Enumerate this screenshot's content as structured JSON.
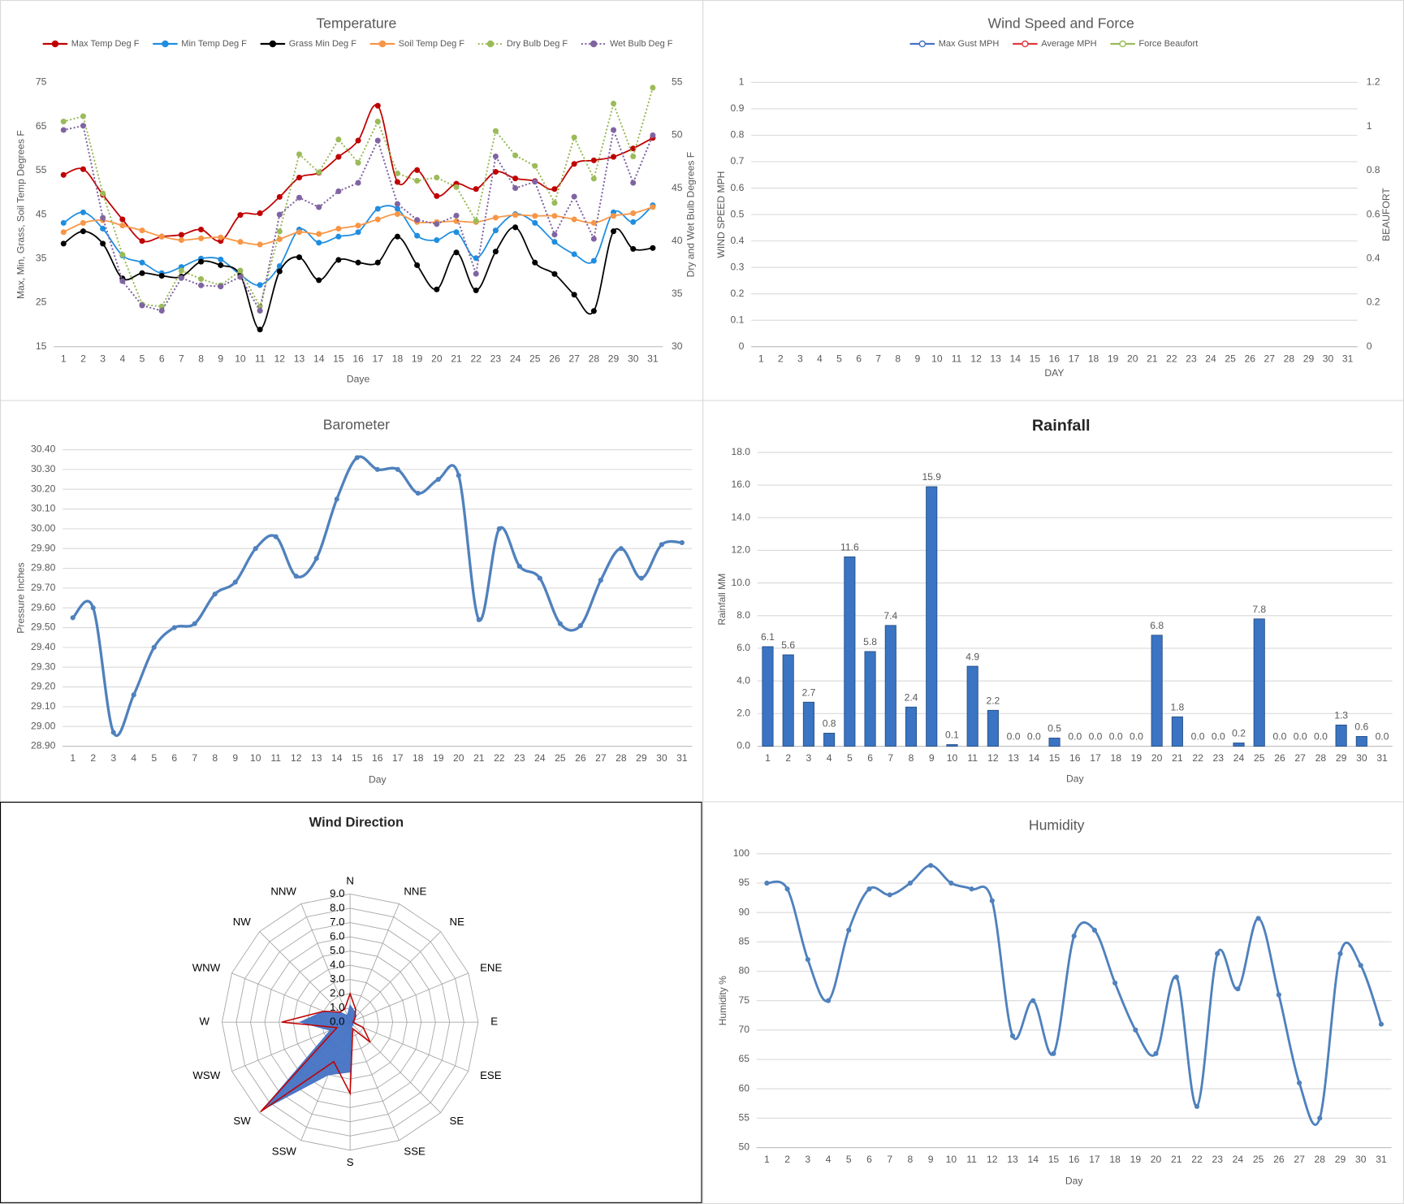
{
  "chart_data": [
    {
      "type": "line",
      "title": "Temperature",
      "x_label": "Daye",
      "y_label": "Max, Min, Grass, Soil Temp Degrees F",
      "y2_label": "Dry and Wet Bulb Degrees F",
      "categories": [
        1,
        2,
        3,
        4,
        5,
        6,
        7,
        8,
        9,
        10,
        11,
        12,
        13,
        14,
        15,
        16,
        17,
        18,
        19,
        20,
        21,
        22,
        23,
        24,
        25,
        26,
        27,
        28,
        29,
        30,
        31
      ],
      "ylim": [
        15,
        75
      ],
      "yticks": [
        15,
        25,
        35,
        45,
        55,
        65,
        75
      ],
      "y2lim": [
        30,
        55
      ],
      "y2ticks": [
        30,
        35,
        40,
        45,
        50,
        55
      ],
      "grid": false,
      "legend": "top",
      "series": [
        {
          "name": "Max Temp Deg F",
          "color": "#c00000",
          "smooth": true,
          "values": [
            54.0,
            55.3,
            49.5,
            43.9,
            39.0,
            40.0,
            40.4,
            41.6,
            39.0,
            44.9,
            45.3,
            49.0,
            53.4,
            54.5,
            58.1,
            61.8,
            69.7,
            52.4,
            55.1,
            49.2,
            52.0,
            50.8,
            54.7,
            53.2,
            52.6,
            50.8,
            56.5,
            57.3,
            58.1,
            60.0,
            62.4
          ]
        },
        {
          "name": "Min Temp Deg F",
          "color": "#1f8ee0",
          "smooth": true,
          "values": [
            43.1,
            45.5,
            41.8,
            35.7,
            34.1,
            31.7,
            33.1,
            35.0,
            34.8,
            31.3,
            29.0,
            33.3,
            41.6,
            38.6,
            40.0,
            41.0,
            46.3,
            46.3,
            40.2,
            39.2,
            41.0,
            35.1,
            41.4,
            45.1,
            43.1,
            38.8,
            36.0,
            34.5,
            45.5,
            43.3,
            47.1
          ]
        },
        {
          "name": "Grass Min Deg F",
          "color": "#000000",
          "smooth": true,
          "values": [
            38.4,
            41.2,
            38.4,
            30.5,
            31.7,
            31.1,
            30.9,
            34.3,
            33.5,
            31.3,
            18.9,
            32.1,
            35.3,
            30.1,
            34.7,
            34.1,
            34.1,
            40.0,
            33.5,
            28.0,
            36.4,
            27.8,
            36.6,
            42.1,
            34.1,
            31.5,
            26.8,
            23.1,
            41.2,
            37.2,
            37.4
          ]
        },
        {
          "name": "Soil Temp Deg F",
          "color": "#f79646",
          "smooth": true,
          "values": [
            41.0,
            43.1,
            43.7,
            42.5,
            41.4,
            40.0,
            39.2,
            39.6,
            39.8,
            38.8,
            38.2,
            39.4,
            41.0,
            40.6,
            41.8,
            42.5,
            43.9,
            45.1,
            43.3,
            43.3,
            43.5,
            43.3,
            44.3,
            44.9,
            44.7,
            44.7,
            43.9,
            43.1,
            44.7,
            45.3,
            46.7
          ]
        },
        {
          "name": "Dry Bulb Deg F",
          "color": "#9bbb59",
          "axis": "y2",
          "dash": "dotted",
          "values": [
            51.3,
            51.8,
            44.5,
            38.7,
            34.0,
            33.8,
            37.2,
            36.4,
            35.8,
            37.2,
            33.8,
            40.9,
            48.2,
            46.5,
            49.6,
            47.4,
            51.3,
            46.4,
            45.7,
            46.0,
            45.1,
            41.9,
            50.4,
            48.1,
            47.1,
            43.6,
            49.8,
            45.9,
            53.0,
            48.0,
            54.5
          ]
        },
        {
          "name": "Wet Bulb Deg F",
          "color": "#8064a2",
          "axis": "y2",
          "dash": "dotted",
          "values": [
            50.5,
            50.9,
            42.2,
            36.2,
            33.9,
            33.4,
            36.5,
            35.8,
            35.7,
            36.6,
            33.4,
            42.5,
            44.1,
            43.2,
            44.7,
            45.5,
            49.5,
            43.5,
            42.0,
            41.6,
            42.4,
            36.9,
            48.0,
            45.0,
            45.6,
            40.6,
            44.2,
            40.2,
            50.5,
            45.5,
            50.0
          ]
        }
      ]
    },
    {
      "type": "line",
      "title": "Wind Speed and Force",
      "x_label": "DAY",
      "y_label": "WIND SPEED MPH",
      "y2_label": "BEAUFORT",
      "categories": [
        1,
        2,
        3,
        4,
        5,
        6,
        7,
        8,
        9,
        10,
        11,
        12,
        13,
        14,
        15,
        16,
        17,
        18,
        19,
        20,
        21,
        22,
        23,
        24,
        25,
        26,
        27,
        28,
        29,
        30,
        31
      ],
      "ylim": [
        0,
        1
      ],
      "yticks": [
        0,
        0.1,
        0.2,
        0.3,
        0.4,
        0.5,
        0.6,
        0.7,
        0.8,
        0.9,
        1
      ],
      "y2lim": [
        0,
        1.2
      ],
      "y2ticks": [
        0,
        0.2,
        0.4,
        0.6,
        0.8,
        1,
        1.2
      ],
      "grid": true,
      "legend": "top",
      "series": [
        {
          "name": "Max Gust MPH",
          "color": "#4472c4",
          "values": [
            null,
            null,
            null,
            null,
            null,
            null,
            null,
            null,
            null,
            null,
            null,
            null,
            null,
            null,
            null,
            null,
            null,
            null,
            null,
            null,
            null,
            null,
            null,
            null,
            null,
            null,
            null,
            null,
            null,
            null,
            null
          ]
        },
        {
          "name": "Average MPH",
          "color": "#e0393e",
          "values": [
            null,
            null,
            null,
            null,
            null,
            null,
            null,
            null,
            null,
            null,
            null,
            null,
            null,
            null,
            null,
            null,
            null,
            null,
            null,
            null,
            null,
            null,
            null,
            null,
            null,
            null,
            null,
            null,
            null,
            null,
            null
          ]
        },
        {
          "name": "Force Beaufort",
          "color": "#9bbb59",
          "axis": "y2",
          "values": [
            null,
            null,
            null,
            null,
            null,
            null,
            null,
            null,
            null,
            null,
            null,
            null,
            null,
            null,
            null,
            null,
            null,
            null,
            null,
            null,
            null,
            null,
            null,
            null,
            null,
            null,
            null,
            null,
            null,
            null,
            null
          ]
        }
      ]
    },
    {
      "type": "line",
      "title": "Barometer",
      "x_label": "Day",
      "y_label": "Pressure Inches",
      "categories": [
        1,
        2,
        3,
        4,
        5,
        6,
        7,
        8,
        9,
        10,
        11,
        12,
        13,
        14,
        15,
        16,
        17,
        18,
        19,
        20,
        21,
        22,
        23,
        24,
        25,
        26,
        27,
        28,
        29,
        30,
        31
      ],
      "ylim": [
        28.9,
        30.4
      ],
      "yticks": [
        {
          "value": 28.9,
          "label": "28.90"
        },
        {
          "value": 29.0,
          "label": "29.00"
        },
        {
          "value": 29.1,
          "label": "29.10"
        },
        {
          "value": 29.2,
          "label": "29.20"
        },
        {
          "value": 29.3,
          "label": "29.30"
        },
        {
          "value": 29.4,
          "label": "29.40"
        },
        {
          "value": 29.5,
          "label": "29.50"
        },
        {
          "value": 29.6,
          "label": "29.60"
        },
        {
          "value": 29.7,
          "label": "29.70"
        },
        {
          "value": 29.8,
          "label": "29.80"
        },
        {
          "value": 29.9,
          "label": "29.90"
        },
        {
          "value": 30.0,
          "label": "30.00"
        },
        {
          "value": 30.1,
          "label": "30.10"
        },
        {
          "value": 30.2,
          "label": "30.20"
        },
        {
          "value": 30.3,
          "label": "30.30"
        },
        {
          "value": 30.4,
          "label": "30.40"
        }
      ],
      "grid": true,
      "series": [
        {
          "color": "#4f81bd",
          "smooth": true,
          "values": [
            29.55,
            29.6,
            28.97,
            29.16,
            29.4,
            29.5,
            29.52,
            29.67,
            29.73,
            29.9,
            29.96,
            29.76,
            29.85,
            30.15,
            30.36,
            30.3,
            30.3,
            30.18,
            30.25,
            30.27,
            29.54,
            30.0,
            29.81,
            29.75,
            29.52,
            29.51,
            29.74,
            29.9,
            29.75,
            29.92,
            29.93
          ]
        }
      ]
    },
    {
      "type": "bar",
      "title": "Rainfall",
      "x_label": "Day",
      "y_label": "Rainfall MM",
      "categories": [
        1,
        2,
        3,
        4,
        5,
        6,
        7,
        8,
        9,
        10,
        11,
        12,
        13,
        14,
        15,
        16,
        17,
        18,
        19,
        20,
        21,
        22,
        23,
        24,
        25,
        26,
        27,
        28,
        29,
        30,
        31
      ],
      "ylim": [
        0,
        18
      ],
      "yticks": [
        {
          "value": 0,
          "label": "0.0"
        },
        {
          "value": 2,
          "label": "2.0"
        },
        {
          "value": 4,
          "label": "4.0"
        },
        {
          "value": 6,
          "label": "6.0"
        },
        {
          "value": 8,
          "label": "8.0"
        },
        {
          "value": 10,
          "label": "10.0"
        },
        {
          "value": 12,
          "label": "12.0"
        },
        {
          "value": 14,
          "label": "14.0"
        },
        {
          "value": 16,
          "label": "16.0"
        },
        {
          "value": 18,
          "label": "18.0"
        }
      ],
      "grid": true,
      "color": "#3a74c2",
      "values": [
        6.1,
        5.6,
        2.7,
        0.8,
        11.6,
        5.8,
        7.4,
        2.4,
        15.9,
        0.1,
        4.9,
        2.2,
        0,
        0,
        0.5,
        0,
        0,
        0,
        0,
        6.8,
        1.8,
        0,
        0,
        0.2,
        7.8,
        0,
        0,
        0,
        1.3,
        0.6,
        0
      ],
      "value_labels": [
        "6.1",
        "5.6",
        "2.7",
        "0.8",
        "11.6",
        "5.8",
        "7.4",
        "2.4",
        "15.9",
        "0.1",
        "4.9",
        "2.2",
        "0.0",
        "0.0",
        "0.5",
        "0.0",
        "0.0",
        "0.0",
        "0.0",
        "6.8",
        "1.8",
        "0.0",
        "0.0",
        "0.2",
        "7.8",
        "0.0",
        "0.0",
        "0.0",
        "1.3",
        "0.6",
        "0.0"
      ]
    },
    {
      "type": "radar",
      "title": "Wind Direction",
      "categories": [
        "N",
        "NNE",
        "NE",
        "ENE",
        "E",
        "ESE",
        "SE",
        "SSE",
        "S",
        "SSW",
        "SW",
        "WSW",
        "W",
        "WNW",
        "NW",
        "NNW"
      ],
      "ylim": [
        0,
        9
      ],
      "yticks": [
        {
          "value": 0,
          "label": "0.0"
        },
        {
          "value": 1,
          "label": "1.0"
        },
        {
          "value": 2,
          "label": "2.0"
        },
        {
          "value": 3,
          "label": "3.0"
        },
        {
          "value": 4,
          "label": "4.0"
        },
        {
          "value": 5,
          "label": "5.0"
        },
        {
          "value": 6,
          "label": "6.0"
        },
        {
          "value": 7,
          "label": "7.0"
        },
        {
          "value": 8,
          "label": "8.0"
        },
        {
          "value": 9,
          "label": "9.0"
        }
      ],
      "series": [
        {
          "color": "#4472c4",
          "fill": true,
          "values": [
            1.2,
            0.8,
            0.6,
            0.3,
            0.3,
            0.2,
            0.3,
            0.3,
            3.5,
            4.0,
            8.7,
            1.5,
            3.5,
            2.0,
            1.0,
            0.5
          ]
        },
        {
          "color": "#c00000",
          "fill": false,
          "values": [
            2.0,
            1.0,
            0.5,
            0.3,
            0.2,
            1.0,
            2.0,
            0.5,
            5.0,
            3.0,
            8.9,
            1.0,
            4.8,
            2.0,
            1.0,
            1.0
          ]
        }
      ]
    },
    {
      "type": "line",
      "title": "Humidity",
      "x_label": "Day",
      "y_label": "Humidity %",
      "categories": [
        1,
        2,
        3,
        4,
        5,
        6,
        7,
        8,
        9,
        10,
        11,
        12,
        13,
        14,
        15,
        16,
        17,
        18,
        19,
        20,
        21,
        22,
        23,
        24,
        25,
        26,
        27,
        28,
        29,
        30,
        31
      ],
      "ylim": [
        50,
        100
      ],
      "yticks": [
        50,
        55,
        60,
        65,
        70,
        75,
        80,
        85,
        90,
        95,
        100
      ],
      "grid": true,
      "series": [
        {
          "color": "#4f81bd",
          "smooth": true,
          "values": [
            95,
            94,
            82,
            75,
            87,
            94,
            93,
            95,
            98,
            95,
            94,
            92,
            69,
            75,
            66,
            86,
            87,
            78,
            70,
            66,
            79,
            57,
            83,
            77,
            89,
            76,
            61,
            55,
            83,
            81,
            71
          ]
        }
      ]
    }
  ]
}
